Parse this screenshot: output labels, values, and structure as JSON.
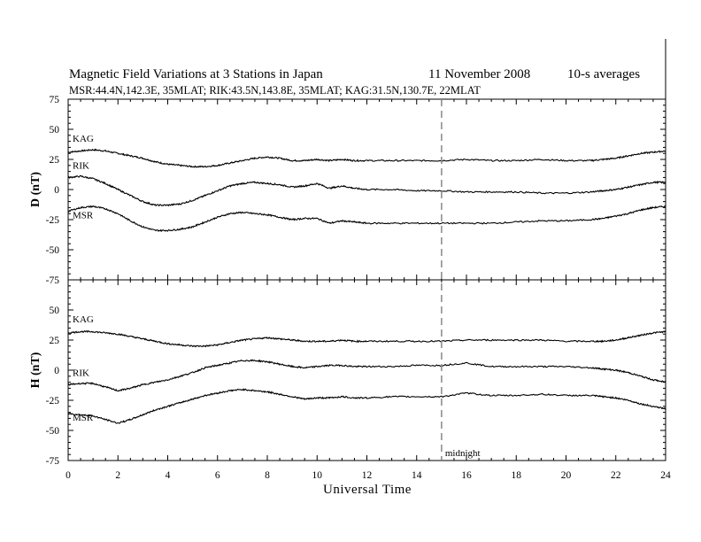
{
  "chart_data": {
    "type": "line",
    "title": "Magnetic Field Variations at 3 Stations in Japan",
    "date": "11 November 2008",
    "averaging": "10-s averages",
    "subtitle": "MSR:44.4N,142.3E, 35MLAT;  RIK:43.5N,143.8E, 35MLAT;  KAG:31.5N,130.7E, 22MLAT",
    "xlabel": "Universal Time",
    "xlim": [
      0,
      24
    ],
    "xticks": [
      "0",
      "2",
      "4",
      "6",
      "8",
      "10",
      "12",
      "14",
      "16",
      "18",
      "20",
      "22",
      "24"
    ],
    "grid": false,
    "annotation": {
      "label": "midnight",
      "x": 15
    },
    "panels": [
      {
        "ylabel": "D (nT)",
        "ylim": [
          -75,
          75
        ],
        "yticks": [
          "75",
          "50",
          "25",
          "0",
          "-25",
          "-50",
          "-75"
        ],
        "series": [
          {
            "name": "KAG",
            "x": [
              0,
              0.5,
              1,
              1.5,
              2,
              2.5,
              3,
              3.5,
              4,
              4.5,
              5,
              5.5,
              6,
              6.5,
              7,
              7.5,
              8,
              8.5,
              9,
              9.5,
              10,
              10.5,
              11,
              11.5,
              12,
              13,
              14,
              15,
              16,
              17,
              18,
              19,
              20,
              21,
              21.5,
              22,
              22.5,
              23,
              23.5,
              24
            ],
            "values": [
              31,
              32,
              33,
              32,
              30,
              28,
              26,
              23,
              21,
              20,
              19,
              19,
              20,
              22,
              24,
              26,
              27,
              26,
              24,
              24,
              25,
              24,
              25,
              24,
              24,
              24,
              24,
              24,
              25,
              24,
              24,
              25,
              24,
              24,
              25,
              26,
              28,
              30,
              31,
              32
            ]
          },
          {
            "name": "RIK",
            "x": [
              0,
              0.5,
              1,
              1.5,
              2,
              2.5,
              3,
              3.5,
              4,
              4.5,
              5,
              5.5,
              6,
              6.5,
              7,
              7.5,
              8,
              8.5,
              9,
              9.5,
              10,
              10.5,
              11,
              11.5,
              12,
              13,
              14,
              15,
              16,
              17,
              18,
              19,
              20,
              21,
              21.5,
              22,
              22.5,
              23,
              23.5,
              24
            ],
            "values": [
              10,
              11,
              9,
              5,
              0,
              -5,
              -10,
              -13,
              -13,
              -12,
              -9,
              -5,
              -1,
              3,
              5,
              6,
              5,
              4,
              2,
              3,
              5,
              1,
              3,
              1,
              0,
              0,
              -1,
              -1,
              -2,
              -2,
              -2,
              -3,
              -3,
              -2,
              -1,
              0,
              2,
              4,
              6,
              6
            ]
          },
          {
            "name": "MSR",
            "x": [
              0,
              0.5,
              1,
              1.5,
              2,
              2.5,
              3,
              3.5,
              4,
              4.5,
              5,
              5.5,
              6,
              6.5,
              7,
              7.5,
              8,
              8.5,
              9,
              9.5,
              10,
              10.5,
              11,
              11.5,
              12,
              13,
              14,
              15,
              16,
              17,
              18,
              19,
              20,
              21,
              21.5,
              22,
              22.5,
              23,
              23.5,
              24
            ],
            "values": [
              -18,
              -15,
              -14,
              -16,
              -20,
              -26,
              -31,
              -34,
              -34,
              -33,
              -31,
              -27,
              -23,
              -20,
              -19,
              -20,
              -21,
              -23,
              -25,
              -24,
              -24,
              -28,
              -26,
              -27,
              -28,
              -28,
              -28,
              -28,
              -28,
              -28,
              -27,
              -26,
              -26,
              -25,
              -24,
              -22,
              -20,
              -17,
              -15,
              -14
            ]
          }
        ]
      },
      {
        "ylabel": "H (nT)",
        "ylim": [
          -75,
          75
        ],
        "yticks": [
          "75",
          "50",
          "25",
          "0",
          "-25",
          "-50",
          "-75"
        ],
        "series": [
          {
            "name": "KAG",
            "x": [
              0,
              0.5,
              1,
              1.5,
              2,
              2.5,
              3,
              3.5,
              4,
              4.5,
              5,
              5.5,
              6,
              6.5,
              7,
              7.5,
              8,
              8.5,
              9,
              9.5,
              10,
              10.5,
              11,
              11.5,
              12,
              13,
              14,
              15,
              16,
              17,
              18,
              19,
              20,
              21,
              21.5,
              22,
              22.5,
              23,
              23.5,
              24
            ],
            "values": [
              31,
              32,
              32,
              31,
              30,
              28,
              26,
              24,
              22,
              21,
              20,
              20,
              21,
              23,
              25,
              26,
              27,
              26,
              25,
              24,
              24,
              24,
              25,
              24,
              24,
              24,
              24,
              24,
              25,
              25,
              25,
              25,
              24,
              24,
              24,
              25,
              27,
              29,
              31,
              32
            ]
          },
          {
            "name": "RIK",
            "x": [
              0,
              0.5,
              1,
              1.5,
              2,
              2.5,
              3,
              3.5,
              4,
              4.5,
              5,
              5.5,
              6,
              6.5,
              7,
              7.5,
              8,
              8.5,
              9,
              9.5,
              10,
              10.5,
              11,
              11.5,
              12,
              13,
              14,
              15,
              16,
              17,
              18,
              19,
              20,
              21,
              21.5,
              22,
              22.5,
              23,
              23.5,
              24
            ],
            "values": [
              -12,
              -11,
              -11,
              -14,
              -17,
              -15,
              -12,
              -10,
              -8,
              -5,
              -2,
              2,
              4,
              6,
              8,
              8,
              7,
              5,
              3,
              2,
              3,
              4,
              4,
              3,
              3,
              3,
              4,
              4,
              6,
              3,
              3,
              3,
              3,
              2,
              1,
              0,
              -2,
              -5,
              -8,
              -10
            ]
          },
          {
            "name": "MSR",
            "x": [
              0,
              0.5,
              1,
              1.5,
              2,
              2.5,
              3,
              3.5,
              4,
              4.5,
              5,
              5.5,
              6,
              6.5,
              7,
              7.5,
              8,
              8.5,
              9,
              9.5,
              10,
              10.5,
              11,
              11.5,
              12,
              13,
              14,
              15,
              16,
              17,
              18,
              19,
              20,
              21,
              21.5,
              22,
              22.5,
              23,
              23.5,
              24
            ],
            "values": [
              -36,
              -37,
              -38,
              -41,
              -44,
              -41,
              -37,
              -33,
              -30,
              -27,
              -24,
              -21,
              -19,
              -17,
              -16,
              -17,
              -18,
              -20,
              -22,
              -24,
              -23,
              -23,
              -22,
              -23,
              -23,
              -22,
              -22,
              -22,
              -19,
              -21,
              -21,
              -20,
              -21,
              -21,
              -22,
              -23,
              -25,
              -28,
              -30,
              -32
            ]
          }
        ]
      }
    ]
  }
}
